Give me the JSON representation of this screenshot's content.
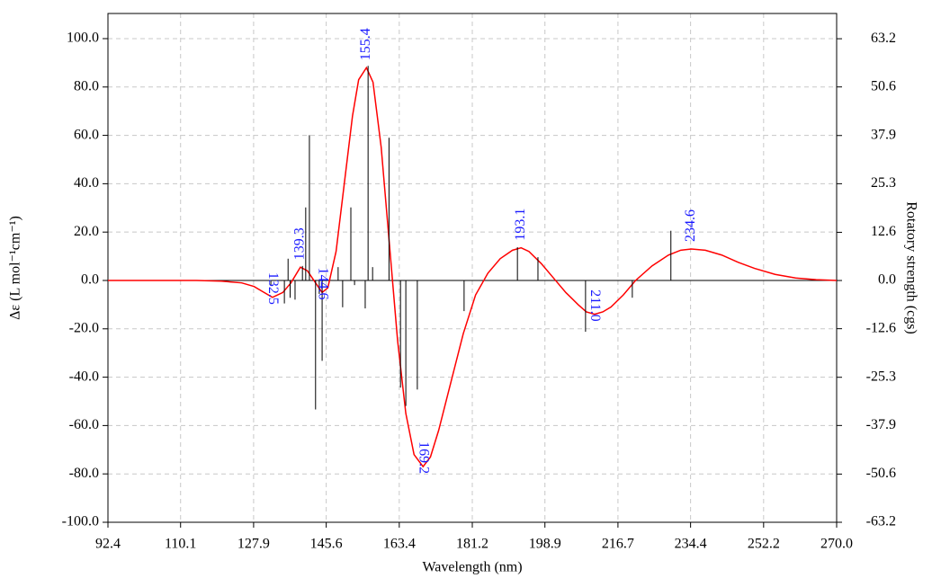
{
  "chart_data": {
    "type": "line",
    "x_label": "Wavelength (nm)",
    "y_label": "Δε (L mol⁻¹cm⁻¹)",
    "y2_label": "Rotatory strength (cgs)",
    "xlim": [
      92.4,
      270.0
    ],
    "xticks": [
      92.4,
      110.1,
      127.9,
      145.6,
      163.4,
      181.2,
      198.9,
      216.7,
      234.4,
      252.2,
      {
        "value": 270.0,
        "label": "270.0"
      }
    ],
    "ylim": [
      -100,
      110.4
    ],
    "yticks": [
      {
        "value": -100,
        "label": "-100.0"
      },
      {
        "value": -80,
        "label": "-80.0"
      },
      {
        "value": -60,
        "label": "-60.0"
      },
      {
        "value": -40,
        "label": "-40.0"
      },
      {
        "value": -20,
        "label": "-20.0"
      },
      {
        "value": 0,
        "label": "0.0"
      },
      {
        "value": 20,
        "label": "20.0"
      },
      {
        "value": 40,
        "label": "40.0"
      },
      {
        "value": 60,
        "label": "60.0"
      },
      {
        "value": 80,
        "label": "80.0"
      },
      {
        "value": 100,
        "label": "100.0"
      }
    ],
    "y2lim": [
      -63.2,
      69.8
    ],
    "y2ticks": [
      -63.2,
      -50.6,
      -37.9,
      -25.3,
      -12.6,
      {
        "value": 0,
        "label": "0.0"
      },
      12.6,
      25.3,
      37.9,
      50.6,
      63.2
    ],
    "grid": true,
    "series": [
      {
        "type": "line",
        "color": "#ff0000",
        "x": [
          92.4,
          105,
          114,
          120,
          125,
          128,
          130,
          132.5,
          135,
          137,
          139.3,
          141,
          143,
          144.6,
          146,
          148,
          150,
          152,
          153.5,
          155.4,
          157,
          159,
          161,
          163,
          165,
          167,
          169.2,
          171,
          173,
          176,
          179,
          182,
          185,
          188,
          191,
          193.1,
          195,
          198,
          201,
          204,
          207,
          209,
          211,
          213,
          215,
          218,
          221,
          225,
          229,
          232,
          234.6,
          238,
          242,
          246,
          250,
          255,
          260,
          265,
          270
        ],
        "values": [
          0,
          0,
          0,
          -0.3,
          -1,
          -2.5,
          -4.5,
          -7,
          -5,
          -1,
          5.5,
          4,
          -1,
          -5,
          -3,
          12,
          40,
          68,
          83,
          88,
          82,
          55,
          15,
          -25,
          -55,
          -72,
          -77,
          -73,
          -62,
          -42,
          -22,
          -6,
          3,
          9,
          12.5,
          13.5,
          12,
          7,
          1,
          -5,
          -10,
          -13,
          -14,
          -13,
          -11,
          -6,
          0,
          6,
          10.5,
          12.5,
          13,
          12.5,
          10.5,
          7.5,
          5,
          2.5,
          1,
          0.3,
          0
        ]
      },
      {
        "type": "stick",
        "axis": "y2",
        "color": "#000000",
        "x": [
          132.1,
          135.4,
          136.3,
          136.8,
          138.0,
          139.8,
          140.6,
          141.5,
          143.0,
          143.9,
          144.6,
          148.5,
          149.6,
          151.6,
          152.5,
          155.1,
          155.8,
          156.9,
          160.9,
          163.7,
          165.0,
          167.8,
          179.2,
          192.2,
          197.2,
          208.8,
          220.2,
          229.6
        ],
        "values": [
          -1.4,
          -6,
          5.7,
          -4.5,
          -5,
          3.8,
          19.1,
          38,
          -33.7,
          -3.5,
          -21,
          3.5,
          -7,
          19.1,
          -1.2,
          -7.3,
          56.1,
          3.5,
          37.3,
          -28,
          -32.8,
          -28.5,
          -8,
          8.7,
          6.1,
          -13.4,
          -4.5,
          13
        ]
      }
    ],
    "annotations": [
      {
        "label": "132.5",
        "x": 132.5,
        "y": -7
      },
      {
        "label": "139.3",
        "x": 139.3,
        "y": 5.5
      },
      {
        "label": "144.6",
        "x": 144.6,
        "y": -5
      },
      {
        "label": "155.4",
        "x": 155.4,
        "y": 88
      },
      {
        "label": "169.2",
        "x": 169.2,
        "y": -77
      },
      {
        "label": "193.1",
        "x": 193.1,
        "y": 13.5
      },
      {
        "label": "211.0",
        "x": 211.0,
        "y": -14
      },
      {
        "label": "234.6",
        "x": 234.6,
        "y": 13
      }
    ]
  }
}
